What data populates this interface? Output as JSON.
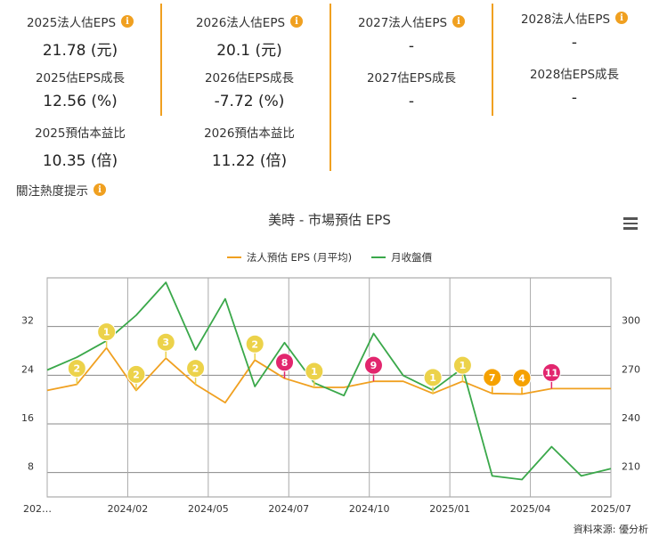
{
  "eps_columns": [
    {
      "items": [
        {
          "label": "2025法人估EPS",
          "value": "21.78 (元)",
          "info": true
        },
        {
          "label": "2025估EPS成長",
          "value": "12.56 (%)",
          "info": false
        },
        {
          "label": "2025預估本益比",
          "value": "10.35 (倍)",
          "info": false
        }
      ]
    },
    {
      "items": [
        {
          "label": "2026法人估EPS",
          "value": "20.1 (元)",
          "info": true
        },
        {
          "label": "2026估EPS成長",
          "value": "-7.72 (%)",
          "info": false
        },
        {
          "label": "2026預估本益比",
          "value": "11.22 (倍)",
          "info": false
        }
      ]
    },
    {
      "items": [
        {
          "label": "2027法人估EPS",
          "value": "-",
          "info": true
        },
        {
          "label": "2027估EPS成長",
          "value": "-",
          "info": false
        }
      ]
    },
    {
      "items": [
        {
          "label": "2028法人估EPS",
          "value": "-",
          "info": true
        },
        {
          "label": "2028估EPS成長",
          "value": "-",
          "info": false
        }
      ]
    }
  ],
  "info_glyph": "i",
  "hot_title": "關注熱度提示",
  "source": "資料來源: 優分析",
  "colors": {
    "accent": "#f0a020",
    "eps_line": "#f0a020",
    "revenue_line": "#3aa84a",
    "badge_yellow": "#ecd24a",
    "badge_orange": "#f5a100",
    "badge_pink": "#e2266e"
  },
  "chart_data": {
    "type": "line",
    "title": "美時 - 市場預估 EPS",
    "x_tick_labels": [
      "202…",
      "2024/02",
      "2024/05",
      "2024/07",
      "2024/10",
      "2025/01",
      "2025/04",
      "2025/07"
    ],
    "y_left": {
      "ticks": [
        "8",
        "16",
        "24",
        "32"
      ],
      "range": [
        4,
        40
      ]
    },
    "y_right": {
      "ticks": [
        "210",
        "240",
        "270",
        "300"
      ],
      "range": [
        202.5,
        322.5
      ]
    },
    "series": [
      {
        "name": "法人預估 EPS (月平均)",
        "axis": "left",
        "values": [
          21.5,
          22.5,
          28.5,
          21.5,
          26.8,
          22.5,
          19.5,
          26.5,
          23.5,
          22.0,
          22.0,
          23.0,
          23.0,
          21.0,
          23.0,
          21.0,
          20.9,
          21.8,
          21.8,
          21.8
        ]
      },
      {
        "name": "月收盤價",
        "axis": "right",
        "values": [
          272,
          279,
          288,
          302,
          320,
          283,
          311,
          263,
          287,
          265,
          258,
          292,
          269,
          261,
          273,
          214,
          212,
          230,
          214,
          218
        ]
      }
    ],
    "badges": [
      {
        "index": 1,
        "label": "2",
        "color": "yellow"
      },
      {
        "index": 2,
        "label": "1",
        "color": "yellow"
      },
      {
        "index": 3,
        "label": "2",
        "color": "yellow"
      },
      {
        "index": 4,
        "label": "3",
        "color": "yellow"
      },
      {
        "index": 5,
        "label": "2",
        "color": "yellow"
      },
      {
        "index": 7,
        "label": "2",
        "color": "yellow"
      },
      {
        "index": 8,
        "label": "8",
        "color": "pink"
      },
      {
        "index": 9,
        "label": "1",
        "color": "yellow"
      },
      {
        "index": 11,
        "label": "9",
        "color": "pink"
      },
      {
        "index": 13,
        "label": "1",
        "color": "yellow"
      },
      {
        "index": 14,
        "label": "1",
        "color": "yellow"
      },
      {
        "index": 15,
        "label": "7",
        "color": "orange"
      },
      {
        "index": 16,
        "label": "4",
        "color": "orange"
      },
      {
        "index": 17,
        "label": "11",
        "color": "pink"
      }
    ]
  }
}
